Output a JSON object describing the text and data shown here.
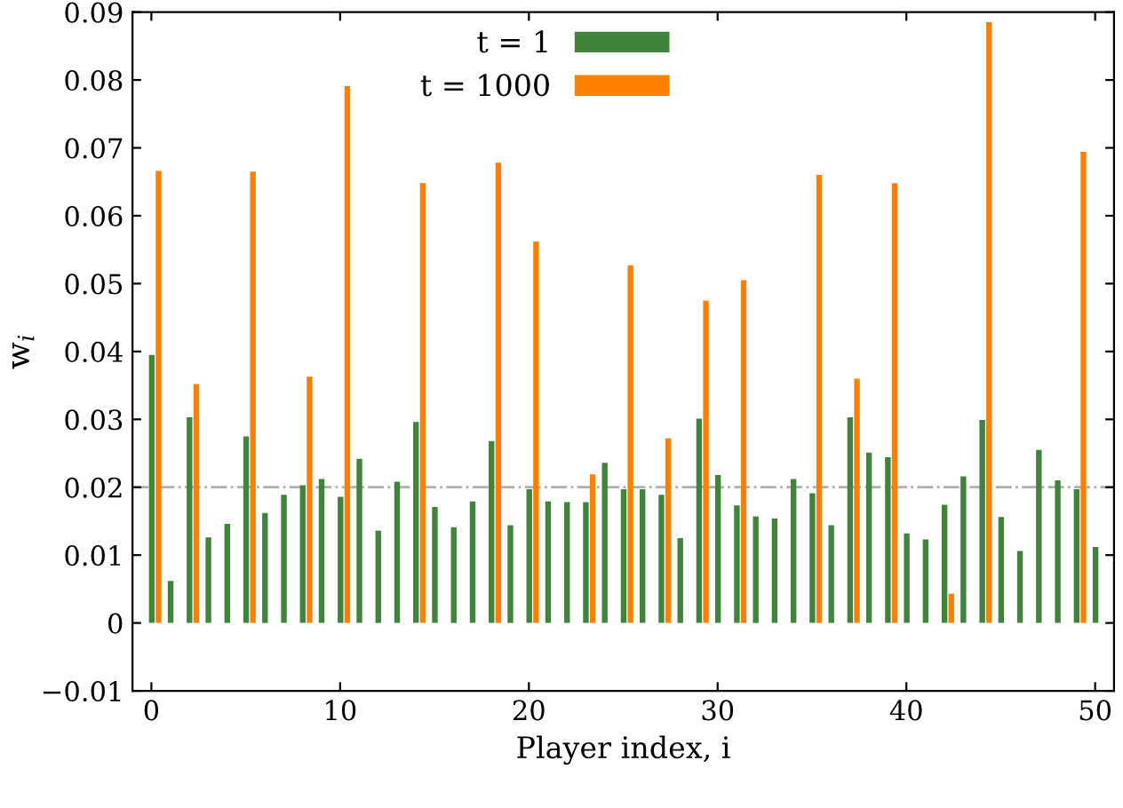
{
  "chart_data": {
    "type": "bar",
    "xlabel": "Player index, i",
    "ylabel": "w$_{i}$",
    "x": [
      0,
      1,
      2,
      3,
      4,
      5,
      6,
      7,
      8,
      9,
      10,
      11,
      12,
      13,
      14,
      15,
      16,
      17,
      18,
      19,
      20,
      21,
      22,
      23,
      24,
      25,
      26,
      27,
      28,
      29,
      30,
      31,
      32,
      33,
      34,
      35,
      36,
      37,
      38,
      39,
      40,
      41,
      42,
      43,
      44,
      45,
      46,
      47,
      48,
      49,
      50
    ],
    "series": [
      {
        "name": "t = 1",
        "color": "#40843c",
        "values": [
          0.0395,
          0.0062,
          0.0303,
          0.0126,
          0.0146,
          0.0275,
          0.0162,
          0.0189,
          0.0203,
          0.0212,
          0.0186,
          0.0242,
          0.0136,
          0.0208,
          0.0296,
          0.0171,
          0.0141,
          0.0179,
          0.0268,
          0.0144,
          0.0197,
          0.0179,
          0.0178,
          0.0178,
          0.0236,
          0.0197,
          0.0197,
          0.0189,
          0.0125,
          0.0301,
          0.0218,
          0.0173,
          0.0157,
          0.0154,
          0.0212,
          0.0191,
          0.0144,
          0.0303,
          0.0251,
          0.0244,
          0.0132,
          0.0123,
          0.0174,
          0.0216,
          0.0299,
          0.0156,
          0.0106,
          0.0255,
          0.021,
          0.0197,
          0.0112
        ]
      },
      {
        "name": "t = 1000",
        "color": "#ff8000",
        "values": [
          0.0666,
          0,
          0.0352,
          0,
          0,
          0.0665,
          0,
          0,
          0.0363,
          0,
          0.0791,
          0,
          0,
          0,
          0.0648,
          0,
          0,
          0,
          0.0678,
          0,
          0.0562,
          0,
          0,
          0.0219,
          0,
          0.0527,
          0,
          0.0272,
          0,
          0.0475,
          0,
          0.0505,
          0,
          0,
          0,
          0.066,
          0,
          0.036,
          0,
          0.0648,
          0,
          0,
          0.0043,
          0,
          0.0885,
          0,
          0,
          0,
          0,
          0.0694,
          0
        ]
      }
    ],
    "xlim": [
      -1,
      51
    ],
    "xticks": [
      0,
      10,
      20,
      30,
      40,
      50
    ],
    "ylim": [
      -0.01,
      0.09
    ],
    "yticks": [
      {
        "value": -0.01,
        "label": "−0.01"
      },
      0,
      0.01,
      0.02,
      0.03,
      0.04,
      0.05,
      0.06,
      0.07,
      0.08,
      0.09
    ],
    "ref_lines": [
      {
        "axis": "y",
        "value": 0.02,
        "color": "#b0b0b0",
        "line_style": "dashdot"
      }
    ],
    "legend": "top",
    "grid": false
  }
}
